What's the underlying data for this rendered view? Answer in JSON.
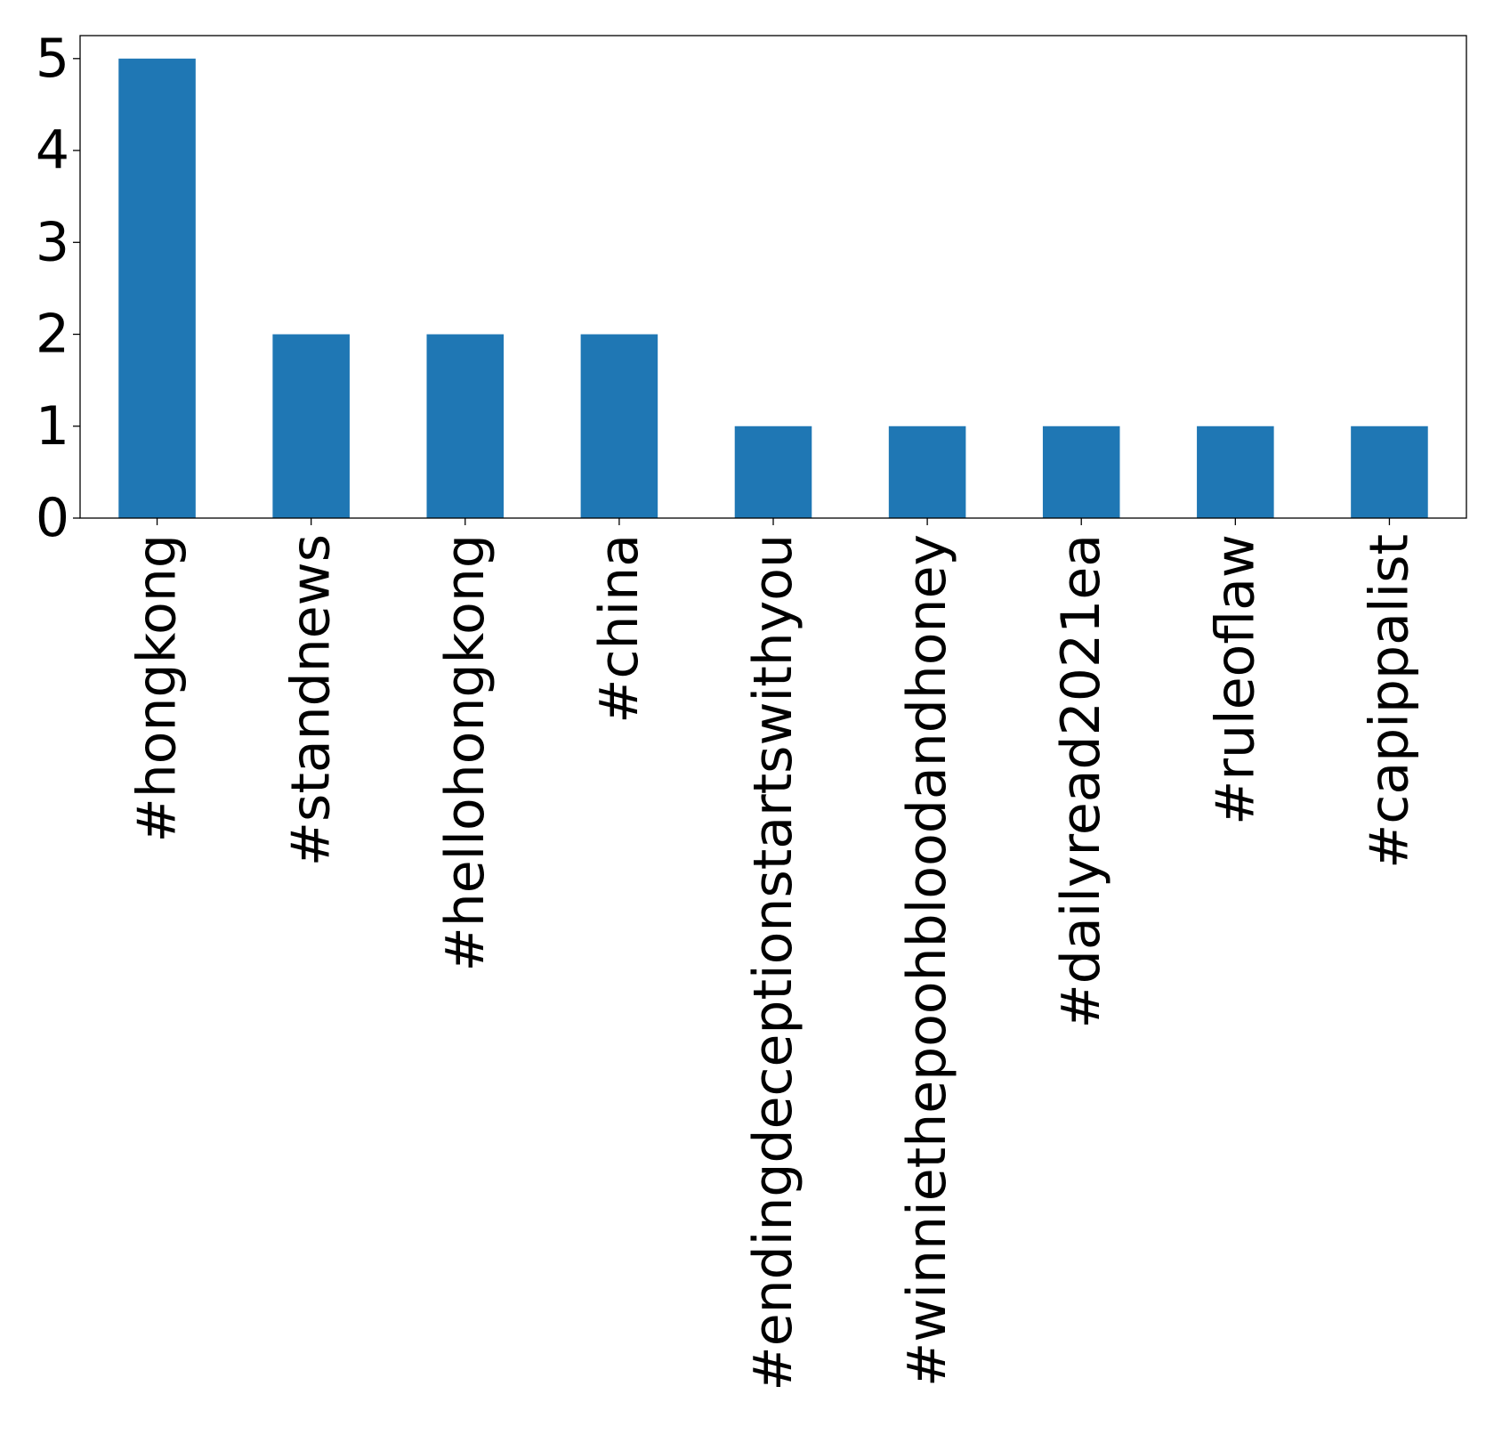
{
  "chart_data": {
    "type": "bar",
    "categories": [
      "#hongkong",
      "#standnews",
      "#hellohongkong",
      "#china",
      "#endingdeceptionstartswithyou",
      "#winniethepoohbloodandhoney",
      "#dailyread2021ea",
      "#ruleoflaw",
      "#capippalist"
    ],
    "values": [
      5,
      2,
      2,
      2,
      1,
      1,
      1,
      1,
      1
    ],
    "yticks": [
      "0",
      "1",
      "2",
      "3",
      "4",
      "5"
    ],
    "ylim": [
      0,
      5.25
    ],
    "title": "",
    "xlabel": "",
    "ylabel": "",
    "grid": false,
    "legend": "none",
    "bar_color": "#1f77b4"
  }
}
